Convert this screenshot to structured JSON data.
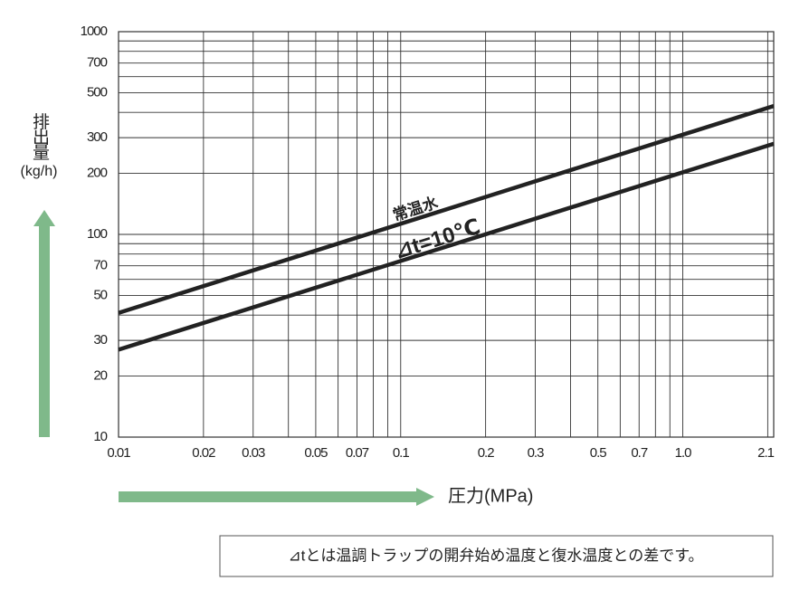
{
  "chart_data": {
    "type": "line",
    "x_label": "圧力(MPa)",
    "y_label": "排出量",
    "y_unit": "(kg/h)",
    "x": [
      0.01,
      2.1
    ],
    "series": [
      {
        "name": "常温水",
        "color": "#222222",
        "values": [
          41,
          430
        ]
      },
      {
        "name": "⊿t=10℃",
        "color": "#222222",
        "values": [
          27,
          280
        ]
      }
    ],
    "x_log": true,
    "y_log": true,
    "grid": true,
    "xlim": [
      0.01,
      2.1
    ],
    "ylim": [
      10,
      1000
    ],
    "xticks": [
      0.01,
      0.02,
      0.03,
      0.05,
      0.07,
      0.1,
      0.2,
      0.3,
      0.5,
      0.7,
      {
        "value": 1,
        "label": "1.0"
      },
      2.1
    ],
    "x_minor_grid": [
      0.04,
      0.06,
      0.08,
      0.09,
      0.4,
      0.6,
      0.8,
      0.9,
      2
    ],
    "yticks": [
      10,
      20,
      30,
      50,
      70,
      100,
      200,
      300,
      500,
      700,
      1000
    ],
    "y_minor_grid": [
      40,
      60,
      80,
      90,
      400,
      600,
      800,
      900
    ]
  },
  "note": "⊿tとは温調トラップの開弁始め温度と復水温度との差です。"
}
